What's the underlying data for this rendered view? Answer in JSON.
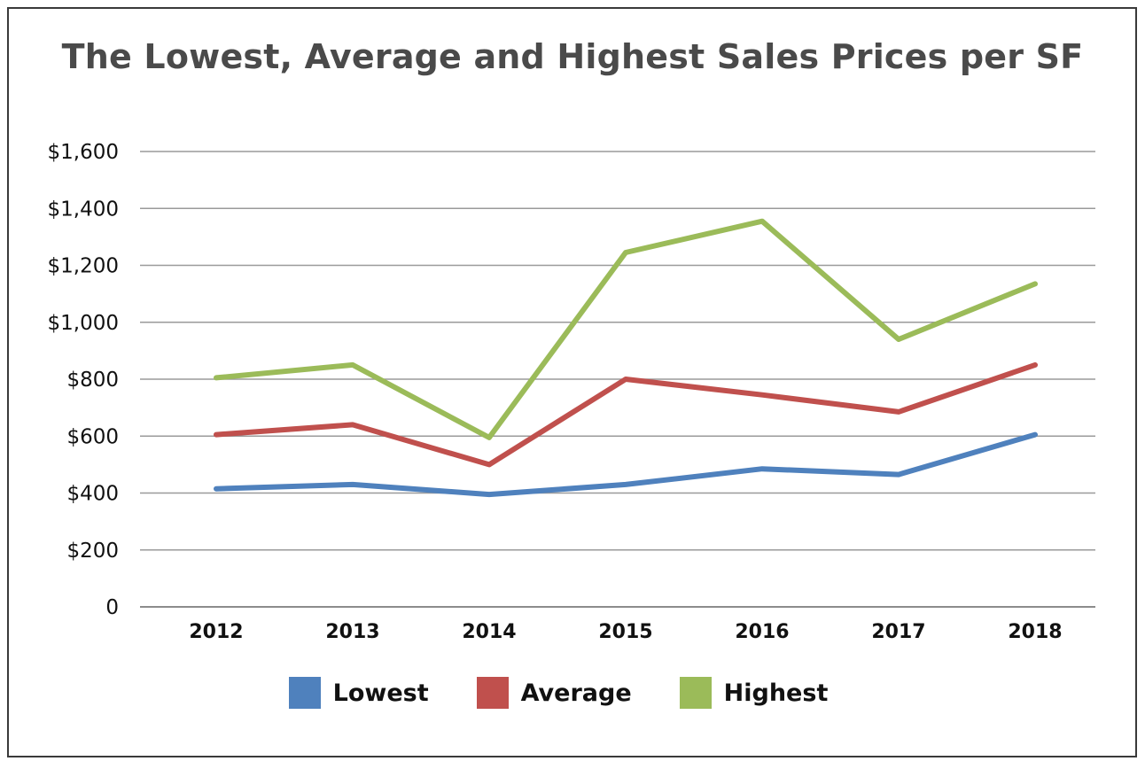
{
  "chart_data": {
    "type": "line",
    "title": "The Lowest, Average and Highest Sales Prices per SF",
    "xlabel": "",
    "ylabel": "",
    "categories": [
      "2012",
      "2013",
      "2014",
      "2015",
      "2016",
      "2017",
      "2018"
    ],
    "y_ticks": [
      "0",
      "$200",
      "$400",
      "$600",
      "$800",
      "$1,000",
      "$1,200",
      "$1,400",
      "$1,600"
    ],
    "ylim": [
      0,
      1600
    ],
    "grid": true,
    "legend_position": "bottom",
    "series": [
      {
        "name": "Lowest",
        "color": "#4f81bd",
        "values": [
          415,
          430,
          395,
          430,
          485,
          465,
          605
        ]
      },
      {
        "name": "Average",
        "color": "#c0504d",
        "values": [
          605,
          640,
          500,
          800,
          745,
          685,
          850
        ]
      },
      {
        "name": "Highest",
        "color": "#9bbb59",
        "values": [
          805,
          850,
          595,
          1245,
          1355,
          940,
          1135
        ]
      }
    ]
  }
}
